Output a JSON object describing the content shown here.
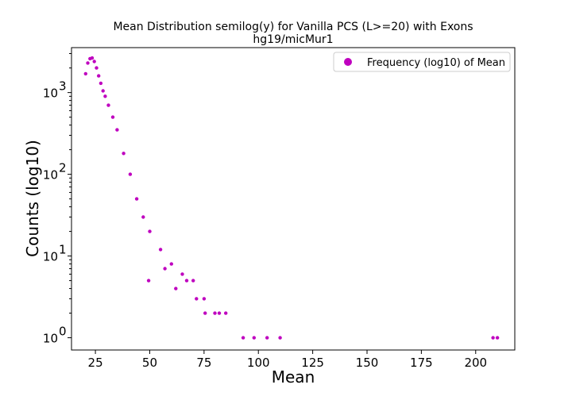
{
  "chart_data": {
    "type": "scatter",
    "title": "Mean Distribution semilog(y) for Vanilla PCS (L>=20) with Exons",
    "subtitle": "hg19/micMur1",
    "xlabel": "Mean",
    "ylabel": "Counts (log10)",
    "xlim": [
      14,
      218
    ],
    "ylim_log10": [
      -0.15,
      3.55
    ],
    "y_scale": "log",
    "x_ticks": [
      25,
      50,
      75,
      100,
      125,
      150,
      175,
      200
    ],
    "x_tick_labels": [
      "25",
      "50",
      "75",
      "100",
      "125",
      "150",
      "175",
      "200"
    ],
    "y_ticks": [
      1,
      10,
      100,
      1000
    ],
    "y_tick_labels": [
      "10",
      "10",
      "10",
      "10"
    ],
    "y_tick_exponents": [
      "0",
      "1",
      "2",
      "3"
    ],
    "marker_color": "#bf00bf",
    "legend": {
      "label": "Frequency (log10) of Mean",
      "position": "top-right"
    },
    "grid": false,
    "series": [
      {
        "name": "Frequency (log10) of Mean",
        "x": [
          20.5,
          21.5,
          22.5,
          23.5,
          24.5,
          25.5,
          26.5,
          27.5,
          28.5,
          29.5,
          31,
          33,
          35,
          38,
          41,
          44,
          47,
          50,
          55,
          60,
          65,
          70,
          75,
          80,
          85,
          93,
          98,
          104,
          110,
          208,
          210,
          49.5,
          71.5,
          82,
          57,
          62,
          67,
          75.5
        ],
        "y": [
          1700,
          2300,
          2600,
          2650,
          2400,
          2000,
          1600,
          1300,
          1050,
          900,
          700,
          500,
          350,
          180,
          100,
          50,
          30,
          20,
          12,
          8,
          6,
          5,
          3,
          2,
          2,
          1,
          1,
          1,
          1,
          1,
          1,
          5,
          3,
          2,
          7,
          4,
          5,
          2
        ]
      }
    ]
  }
}
